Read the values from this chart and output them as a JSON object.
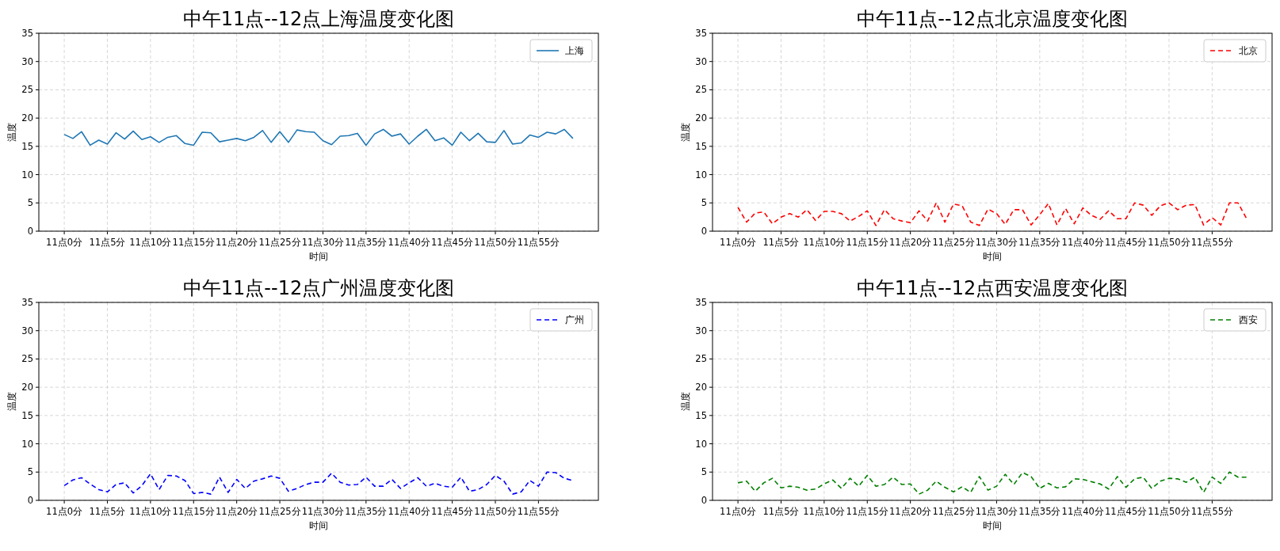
{
  "chart_data": [
    {
      "type": "line",
      "title": "中午11点--12点上海温度变化图",
      "xlabel": "时间",
      "ylabel": "温度",
      "line_style": "solid",
      "grid": true,
      "legend": "top right",
      "ylim": [
        0,
        35
      ],
      "yticks": [
        0,
        5,
        10,
        15,
        20,
        25,
        30,
        35
      ],
      "categories": [
        "11点0分",
        null,
        null,
        null,
        null,
        "11点5分",
        null,
        null,
        null,
        null,
        "11点10分",
        null,
        null,
        null,
        null,
        "11点15分",
        null,
        null,
        null,
        null,
        "11点20分",
        null,
        null,
        null,
        null,
        "11点25分",
        null,
        null,
        null,
        null,
        "11点30分",
        null,
        null,
        null,
        null,
        "11点35分",
        null,
        null,
        null,
        null,
        "11点40分",
        null,
        null,
        null,
        null,
        "11点45分",
        null,
        null,
        null,
        null,
        "11点50分",
        null,
        null,
        null,
        null,
        "11点55分",
        null,
        null,
        null,
        null
      ],
      "series": [
        {
          "name": "上海",
          "color": "#1f77b4",
          "values": [
            17.1,
            16.4,
            17.6,
            15.2,
            16.1,
            15.4,
            17.4,
            16.3,
            17.7,
            16.2,
            16.7,
            15.7,
            16.6,
            16.9,
            15.5,
            15.2,
            17.5,
            17.4,
            15.8,
            16.1,
            16.4,
            16.0,
            16.6,
            17.8,
            15.7,
            17.6,
            15.7,
            17.9,
            17.6,
            17.5,
            16.0,
            15.3,
            16.8,
            16.9,
            17.3,
            15.2,
            17.2,
            18.0,
            16.8,
            17.2,
            15.4,
            16.8,
            18.0,
            16.0,
            16.5,
            15.2,
            17.5,
            16.0,
            17.3,
            15.8,
            15.7,
            17.8,
            15.4,
            15.6,
            17.0,
            16.6,
            17.5,
            17.2,
            18.0,
            16.4
          ]
        }
      ]
    },
    {
      "type": "line",
      "title": "中午11点--12点北京温度变化图",
      "xlabel": "时间",
      "ylabel": "温度",
      "line_style": "dashed",
      "grid": true,
      "legend": "top right",
      "ylim": [
        0,
        35
      ],
      "yticks": [
        0,
        5,
        10,
        15,
        20,
        25,
        30,
        35
      ],
      "categories": [
        "11点0分",
        null,
        null,
        null,
        null,
        "11点5分",
        null,
        null,
        null,
        null,
        "11点10分",
        null,
        null,
        null,
        null,
        "11点15分",
        null,
        null,
        null,
        null,
        "11点20分",
        null,
        null,
        null,
        null,
        "11点25分",
        null,
        null,
        null,
        null,
        "11点30分",
        null,
        null,
        null,
        null,
        "11点35分",
        null,
        null,
        null,
        null,
        "11点40分",
        null,
        null,
        null,
        null,
        "11点45分",
        null,
        null,
        null,
        null,
        "11点50分",
        null,
        null,
        null,
        null,
        "11点55分",
        null,
        null,
        null,
        null
      ],
      "series": [
        {
          "name": "北京",
          "color": "#ff0000",
          "values": [
            4.2,
            1.6,
            3.2,
            3.4,
            1.3,
            2.5,
            3.1,
            2.5,
            3.8,
            1.9,
            3.5,
            3.5,
            3.1,
            1.8,
            2.6,
            3.6,
            1.0,
            3.8,
            2.2,
            1.8,
            1.5,
            3.6,
            1.8,
            5.0,
            1.6,
            4.8,
            4.5,
            1.6,
            1.0,
            3.9,
            3.1,
            1.2,
            3.8,
            3.8,
            1.1,
            2.9,
            4.9,
            1.1,
            4.0,
            1.3,
            4.1,
            2.8,
            2.1,
            3.6,
            2.2,
            2.2,
            5.0,
            4.6,
            2.8,
            4.5,
            5.0,
            3.8,
            4.6,
            4.7,
            1.1,
            2.4,
            1.1,
            5.0,
            5.0,
            2.2
          ]
        }
      ]
    },
    {
      "type": "line",
      "title": "中午11点--12点广州温度变化图",
      "xlabel": "时间",
      "ylabel": "温度",
      "line_style": "dashed",
      "grid": true,
      "legend": "top right",
      "ylim": [
        0,
        35
      ],
      "yticks": [
        0,
        5,
        10,
        15,
        20,
        25,
        30,
        35
      ],
      "categories": [
        "11点0分",
        null,
        null,
        null,
        null,
        "11点5分",
        null,
        null,
        null,
        null,
        "11点10分",
        null,
        null,
        null,
        null,
        "11点15分",
        null,
        null,
        null,
        null,
        "11点20分",
        null,
        null,
        null,
        null,
        "11点25分",
        null,
        null,
        null,
        null,
        "11点30分",
        null,
        null,
        null,
        null,
        "11点35分",
        null,
        null,
        null,
        null,
        "11点40分",
        null,
        null,
        null,
        null,
        "11点45分",
        null,
        null,
        null,
        null,
        "11点50分",
        null,
        null,
        null,
        null,
        "11点55分",
        null,
        null,
        null,
        null
      ],
      "series": [
        {
          "name": "广州",
          "color": "#0000ff",
          "values": [
            2.6,
            3.6,
            4.0,
            2.9,
            1.9,
            1.5,
            2.8,
            3.1,
            1.3,
            2.6,
            4.7,
            1.9,
            4.4,
            4.3,
            3.5,
            1.2,
            1.4,
            1.1,
            4.1,
            1.4,
            3.7,
            2.1,
            3.4,
            3.8,
            4.3,
            3.9,
            1.6,
            2.1,
            2.8,
            3.2,
            3.2,
            4.8,
            3.2,
            2.7,
            2.8,
            4.1,
            2.5,
            2.5,
            3.7,
            2.1,
            3.1,
            4.0,
            2.5,
            3.0,
            2.5,
            2.3,
            4.1,
            1.6,
            1.9,
            2.8,
            4.4,
            3.4,
            1.1,
            1.5,
            3.5,
            2.5,
            5.0,
            4.9,
            3.9,
            3.5
          ]
        }
      ]
    },
    {
      "type": "line",
      "title": "中午11点--12点西安温度变化图",
      "xlabel": "时间",
      "ylabel": "温度",
      "line_style": "dashed",
      "grid": true,
      "legend": "top right",
      "ylim": [
        0,
        35
      ],
      "yticks": [
        0,
        5,
        10,
        15,
        20,
        25,
        30,
        35
      ],
      "categories": [
        "11点0分",
        null,
        null,
        null,
        null,
        "11点5分",
        null,
        null,
        null,
        null,
        "11点10分",
        null,
        null,
        null,
        null,
        "11点15分",
        null,
        null,
        null,
        null,
        "11点20分",
        null,
        null,
        null,
        null,
        "11点25分",
        null,
        null,
        null,
        null,
        "11点30分",
        null,
        null,
        null,
        null,
        "11点35分",
        null,
        null,
        null,
        null,
        "11点40分",
        null,
        null,
        null,
        null,
        "11点45分",
        null,
        null,
        null,
        null,
        "11点50分",
        null,
        null,
        null,
        null,
        "11点55分",
        null,
        null,
        null,
        null
      ],
      "series": [
        {
          "name": "西安",
          "color": "#008000",
          "values": [
            3.1,
            3.4,
            1.6,
            3.1,
            3.9,
            2.2,
            2.5,
            2.3,
            1.8,
            2.0,
            2.9,
            3.6,
            2.1,
            3.9,
            2.5,
            4.4,
            2.5,
            2.8,
            4.1,
            2.8,
            2.9,
            1.1,
            1.8,
            3.4,
            2.3,
            1.5,
            2.4,
            1.4,
            4.2,
            1.8,
            2.5,
            4.6,
            2.8,
            4.9,
            4.2,
            2.1,
            3.0,
            2.2,
            2.4,
            3.8,
            3.7,
            3.3,
            2.9,
            2.0,
            4.2,
            2.3,
            3.8,
            4.1,
            2.1,
            3.4,
            3.9,
            3.8,
            3.2,
            4.1,
            1.4,
            4.1,
            3.0,
            5.0,
            4.1,
            4.1
          ]
        }
      ]
    }
  ]
}
